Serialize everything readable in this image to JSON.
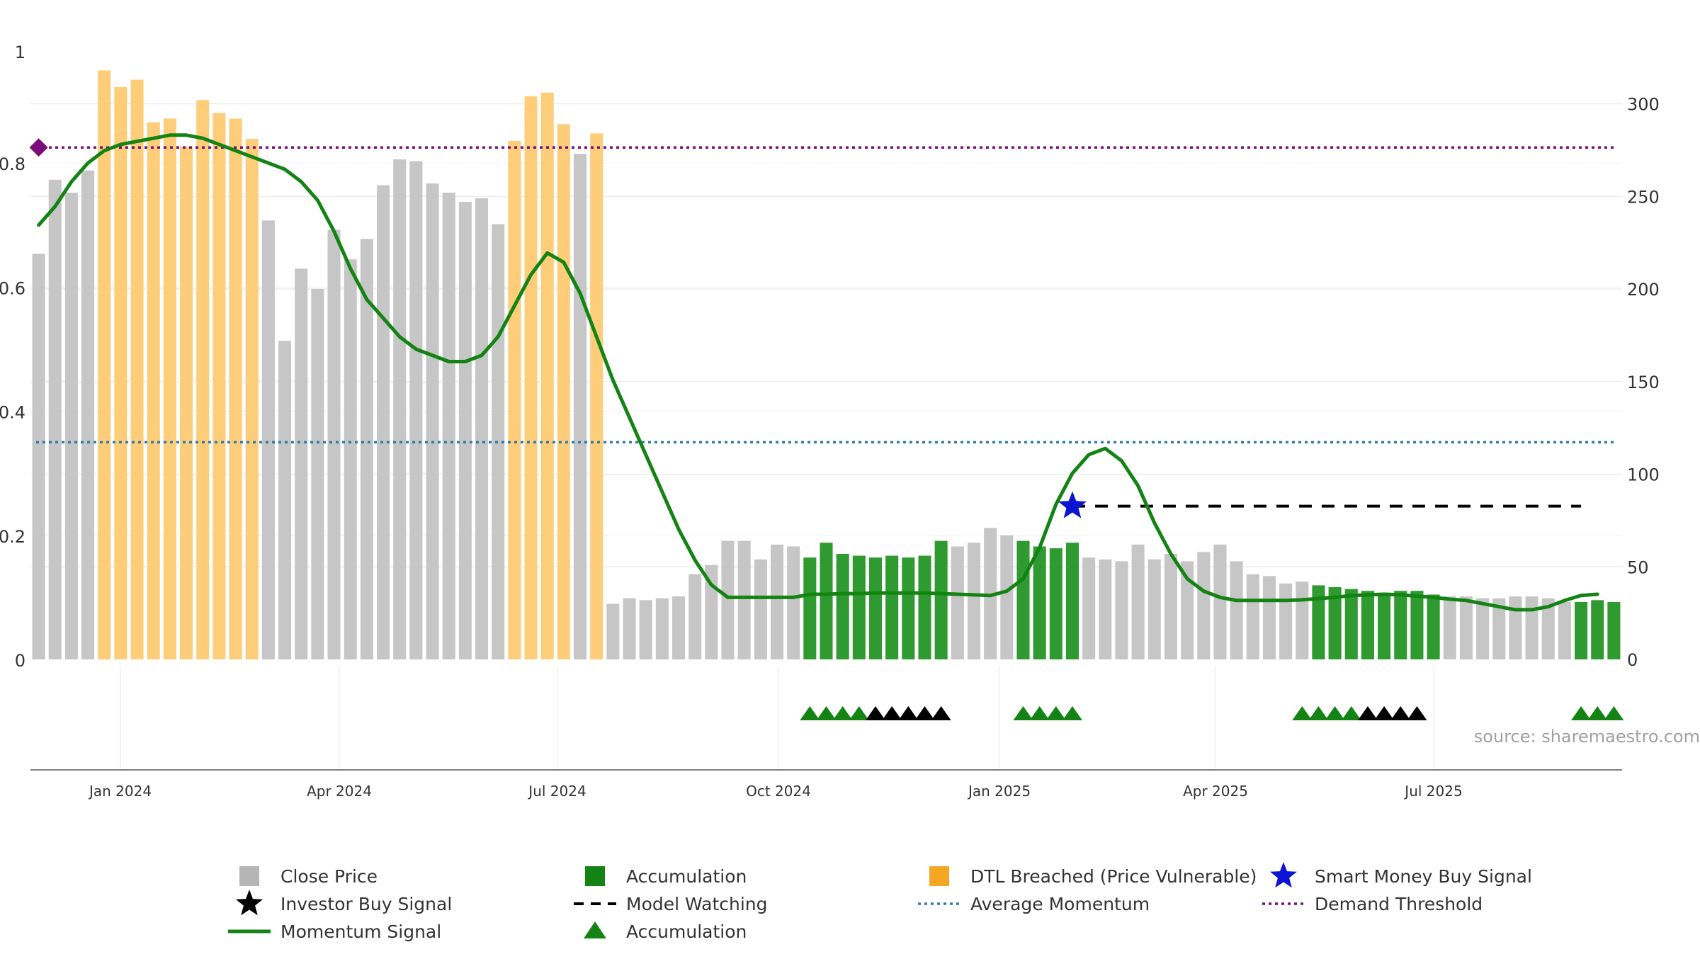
{
  "chart_data": {
    "type": "bar",
    "x_ticks": [
      "Jan 2024",
      "Apr 2024",
      "Jul 2024",
      "Oct 2024",
      "Jan 2025",
      "Apr 2025",
      "Jul 2025"
    ],
    "left_axis": {
      "ticks": [
        "0",
        "0.2",
        "0.4",
        "0.6",
        "0.8",
        "1"
      ],
      "ylim": [
        0,
        1
      ]
    },
    "right_axis": {
      "ticks": [
        "0",
        "50",
        "100",
        "150",
        "200",
        "250",
        "300"
      ],
      "ylim": [
        0,
        335
      ]
    },
    "series": [
      {
        "name": "Close Price",
        "kind": "bar",
        "axis": "right",
        "color": "#c6c6c6",
        "values": [
          219,
          259,
          252,
          264,
          318,
          309,
          313,
          290,
          292,
          277,
          302,
          295,
          292,
          281,
          237,
          172,
          211,
          200,
          232,
          216,
          227,
          256,
          270,
          269,
          257,
          252,
          247,
          249,
          235,
          280,
          304,
          306,
          289,
          273,
          284,
          30,
          33,
          32,
          33,
          34,
          46,
          51,
          64,
          64,
          54,
          62,
          61,
          55,
          63,
          57,
          56,
          55,
          56,
          55,
          56,
          64,
          61,
          63,
          71,
          67,
          64,
          61,
          60,
          63,
          55,
          54,
          53,
          62,
          54,
          57,
          53,
          58,
          62,
          53,
          46,
          45,
          41,
          42,
          40,
          39,
          38,
          37,
          36,
          37,
          37,
          35,
          34,
          34,
          33,
          33,
          34,
          34,
          33,
          31,
          31,
          32,
          31
        ],
        "category_colors": [
          "gray",
          "gray",
          "gray",
          "gray",
          "orange",
          "orange",
          "orange",
          "orange",
          "orange",
          "orange",
          "orange",
          "orange",
          "orange",
          "orange",
          "gray",
          "gray",
          "gray",
          "gray",
          "gray",
          "gray",
          "gray",
          "gray",
          "gray",
          "gray",
          "gray",
          "gray",
          "gray",
          "gray",
          "gray",
          "orange",
          "orange",
          "orange",
          "orange",
          "gray",
          "orange",
          "gray",
          "gray",
          "gray",
          "gray",
          "gray",
          "gray",
          "gray",
          "gray",
          "gray",
          "gray",
          "gray",
          "gray",
          "green",
          "green",
          "green",
          "green",
          "green",
          "green",
          "green",
          "green",
          "green",
          "gray",
          "gray",
          "gray",
          "gray",
          "green",
          "green",
          "green",
          "green",
          "gray",
          "gray",
          "gray",
          "gray",
          "gray",
          "gray",
          "gray",
          "gray",
          "gray",
          "gray",
          "gray",
          "gray",
          "gray",
          "gray",
          "green",
          "green",
          "green",
          "green",
          "green",
          "green",
          "green",
          "green",
          "gray",
          "gray",
          "gray",
          "gray",
          "gray",
          "gray",
          "gray",
          "gray",
          "green",
          "green",
          "green"
        ]
      },
      {
        "name": "Momentum Signal",
        "kind": "line",
        "axis": "left",
        "color": "#138313",
        "values": [
          0.7,
          0.73,
          0.77,
          0.8,
          0.82,
          0.83,
          0.835,
          0.84,
          0.845,
          0.845,
          0.84,
          0.83,
          0.82,
          0.81,
          0.8,
          0.79,
          0.77,
          0.74,
          0.69,
          0.63,
          0.58,
          0.55,
          0.52,
          0.5,
          0.49,
          0.48,
          0.48,
          0.49,
          0.52,
          0.57,
          0.62,
          0.655,
          0.64,
          0.59,
          0.52,
          0.45,
          0.39,
          0.33,
          0.27,
          0.21,
          0.16,
          0.12,
          0.1,
          0.1,
          0.1,
          0.1,
          0.1,
          0.105,
          0.105,
          0.106,
          0.106,
          0.107,
          0.107,
          0.107,
          0.107,
          0.106,
          0.105,
          0.104,
          0.103,
          0.11,
          0.13,
          0.18,
          0.25,
          0.3,
          0.33,
          0.34,
          0.32,
          0.28,
          0.22,
          0.17,
          0.13,
          0.11,
          0.1,
          0.095,
          0.095,
          0.095,
          0.095,
          0.096,
          0.098,
          0.1,
          0.103,
          0.104,
          0.105,
          0.104,
          0.102,
          0.1,
          0.097,
          0.095,
          0.09,
          0.085,
          0.08,
          0.08,
          0.085,
          0.095,
          0.103,
          0.105
        ]
      }
    ],
    "reference_lines": [
      {
        "name": "Demand Threshold",
        "axis": "left",
        "value": 0.825,
        "color": "#7b0c7b",
        "style": "dotted"
      },
      {
        "name": "Average Momentum",
        "axis": "left",
        "value": 0.35,
        "color": "#2e7dab",
        "style": "dotted"
      },
      {
        "name": "Model Watching",
        "axis": "left",
        "value": 0.247,
        "from_index": 63,
        "to_index": 94,
        "color": "#000000",
        "style": "dashed"
      }
    ],
    "markers": [
      {
        "name": "Demand Threshold",
        "shape": "diamond",
        "index": 0,
        "value": 0.825,
        "color": "#7b0c7b"
      },
      {
        "name": "Smart Money Buy Signal",
        "shape": "star",
        "index": 63,
        "value": 0.247,
        "color": "#0a14d2"
      }
    ],
    "signal_triangles": [
      {
        "color": "green",
        "start": 47,
        "count": 4
      },
      {
        "color": "black",
        "start": 51,
        "count": 5
      },
      {
        "color": "green",
        "start": 60,
        "count": 4
      },
      {
        "color": "green",
        "start": 77,
        "count": 4
      },
      {
        "color": "black",
        "start": 81,
        "count": 4
      },
      {
        "color": "green",
        "start": 94,
        "count": 3
      }
    ],
    "source_text": "source: sharemaestro.com",
    "legend": [
      {
        "label": "Close Price",
        "symbol": "square",
        "color": "#b5b5b5"
      },
      {
        "label": "Accumulation",
        "symbol": "square",
        "color": "#138313"
      },
      {
        "label": "DTL Breached (Price Vulnerable)",
        "symbol": "square",
        "color": "#f5a623"
      },
      {
        "label": "Smart Money Buy Signal",
        "symbol": "star",
        "color": "#0a14d2"
      },
      {
        "label": "Investor Buy Signal",
        "symbol": "star",
        "color": "#000000"
      },
      {
        "label": "Model Watching",
        "symbol": "dash",
        "color": "#000000"
      },
      {
        "label": "Average Momentum",
        "symbol": "dotted",
        "color": "#2e7dab"
      },
      {
        "label": "Demand Threshold",
        "symbol": "dotted",
        "color": "#7b0c7b"
      },
      {
        "label": "Momentum Signal",
        "symbol": "line",
        "color": "#138313"
      },
      {
        "label": "Accumulation",
        "symbol": "triangle",
        "color": "#138313"
      }
    ],
    "grid": true,
    "legend_position": "bottom"
  }
}
